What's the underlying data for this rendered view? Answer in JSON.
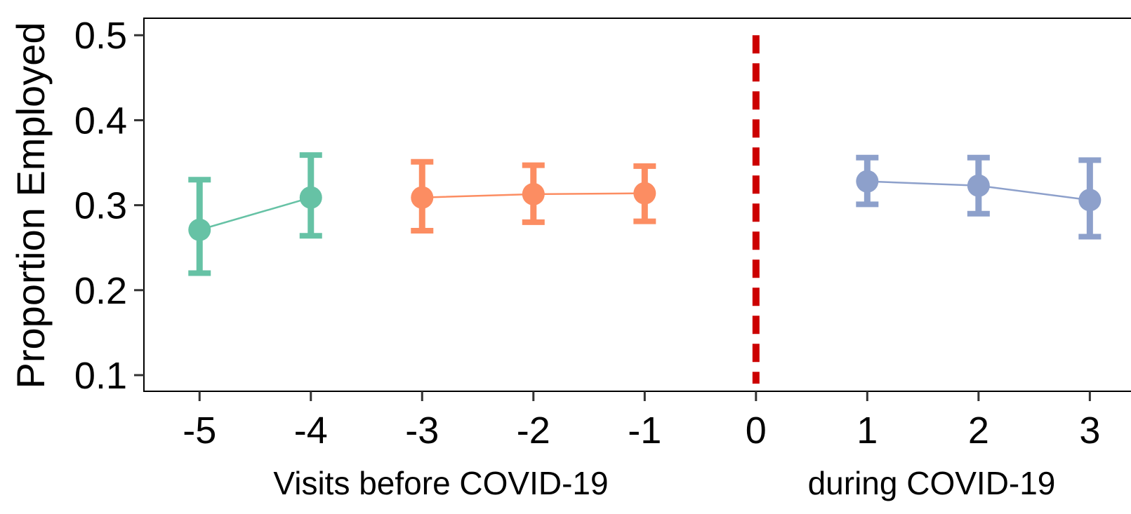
{
  "chart_data": {
    "type": "scatter",
    "ylabel": "Proportion Employed",
    "xlabel_left": "Visits before COVID-19",
    "xlabel_right": "during COVID-19",
    "x_ticks": [
      "-5",
      "-4",
      "-3",
      "-2",
      "-1",
      "0",
      "1",
      "2",
      "3"
    ],
    "y_ticks": [
      "0.1",
      "0.2",
      "0.3",
      "0.4",
      "0.5"
    ],
    "xlim": [
      -5.5,
      3.37
    ],
    "ylim": [
      0.081,
      0.52
    ],
    "grid": false,
    "reference_line": {
      "x": 0,
      "color": "#cc0000",
      "style": "dashed",
      "y_range": [
        0.09,
        0.5
      ]
    },
    "series": [
      {
        "color": "#66c2a5",
        "points": [
          {
            "x": -5,
            "y": 0.271,
            "lo": 0.22,
            "hi": 0.33
          },
          {
            "x": -4,
            "y": 0.309,
            "lo": 0.264,
            "hi": 0.359
          }
        ]
      },
      {
        "color": "#fc8d62",
        "points": [
          {
            "x": -3,
            "y": 0.309,
            "lo": 0.27,
            "hi": 0.351
          },
          {
            "x": -2,
            "y": 0.313,
            "lo": 0.28,
            "hi": 0.347
          },
          {
            "x": -1,
            "y": 0.314,
            "lo": 0.281,
            "hi": 0.346
          }
        ]
      },
      {
        "color": "#8da0cb",
        "points": [
          {
            "x": 1,
            "y": 0.328,
            "lo": 0.301,
            "hi": 0.356
          },
          {
            "x": 2,
            "y": 0.323,
            "lo": 0.29,
            "hi": 0.356
          },
          {
            "x": 3,
            "y": 0.306,
            "lo": 0.263,
            "hi": 0.353
          }
        ]
      }
    ]
  }
}
